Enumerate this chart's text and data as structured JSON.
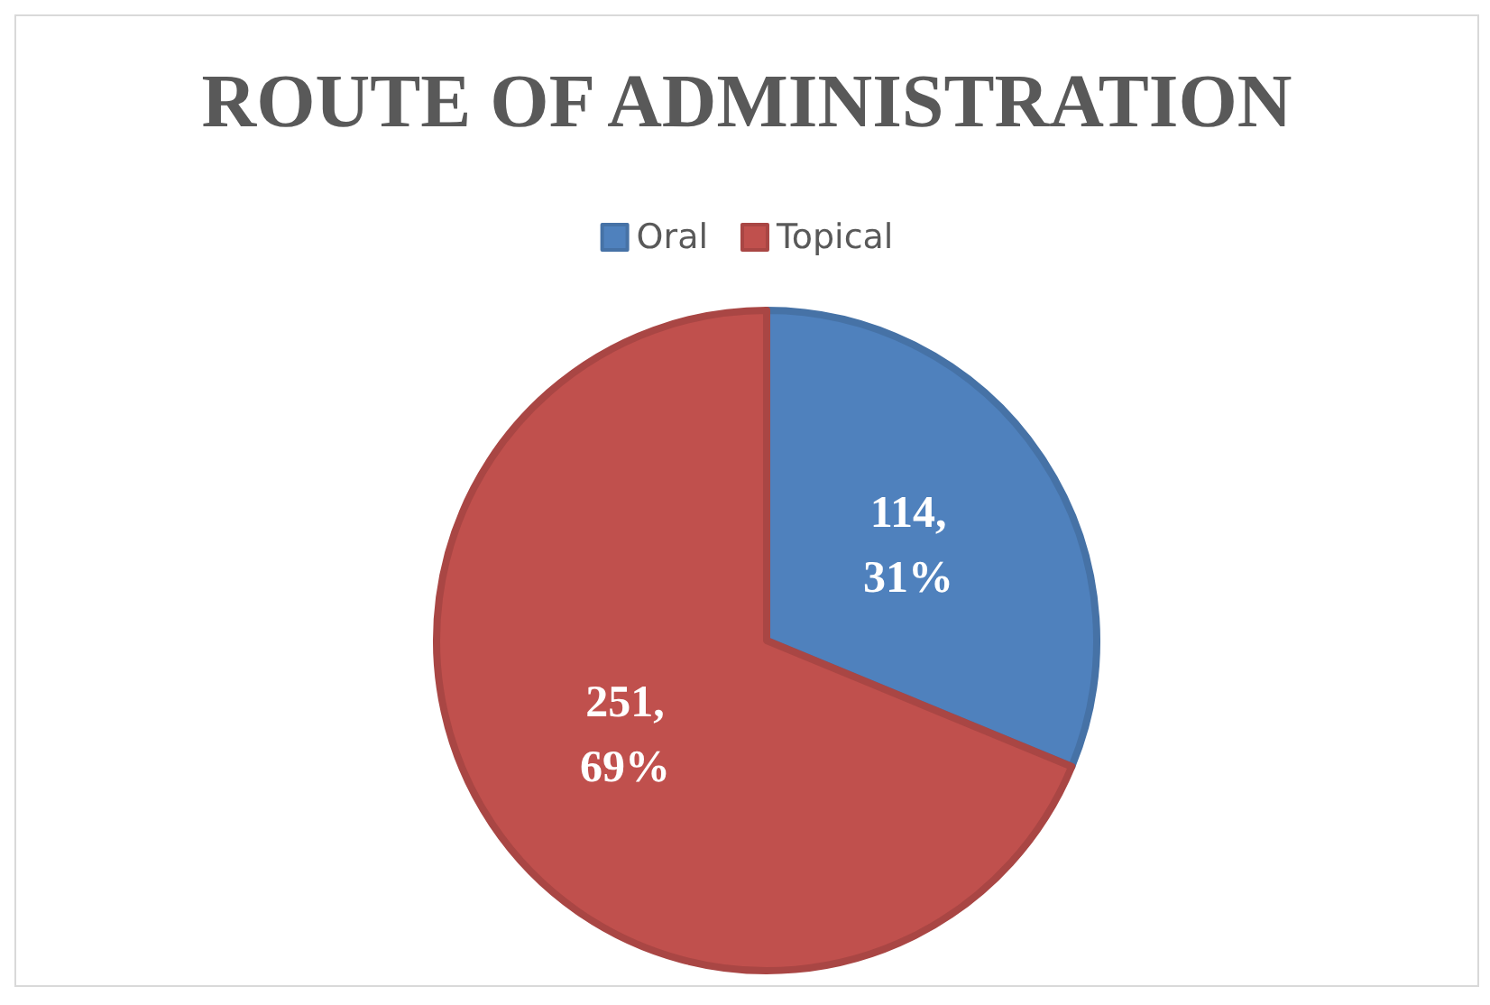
{
  "chart_data": {
    "type": "pie",
    "title": "ROUTE OF ADMINISTRATION",
    "categories": [
      "Oral",
      "Topical"
    ],
    "values": [
      114,
      251
    ],
    "colors": [
      "#4f81bd",
      "#c0504d"
    ],
    "value_labels": [
      "114,\n31%",
      "251,\n69%"
    ],
    "legend": "top"
  }
}
